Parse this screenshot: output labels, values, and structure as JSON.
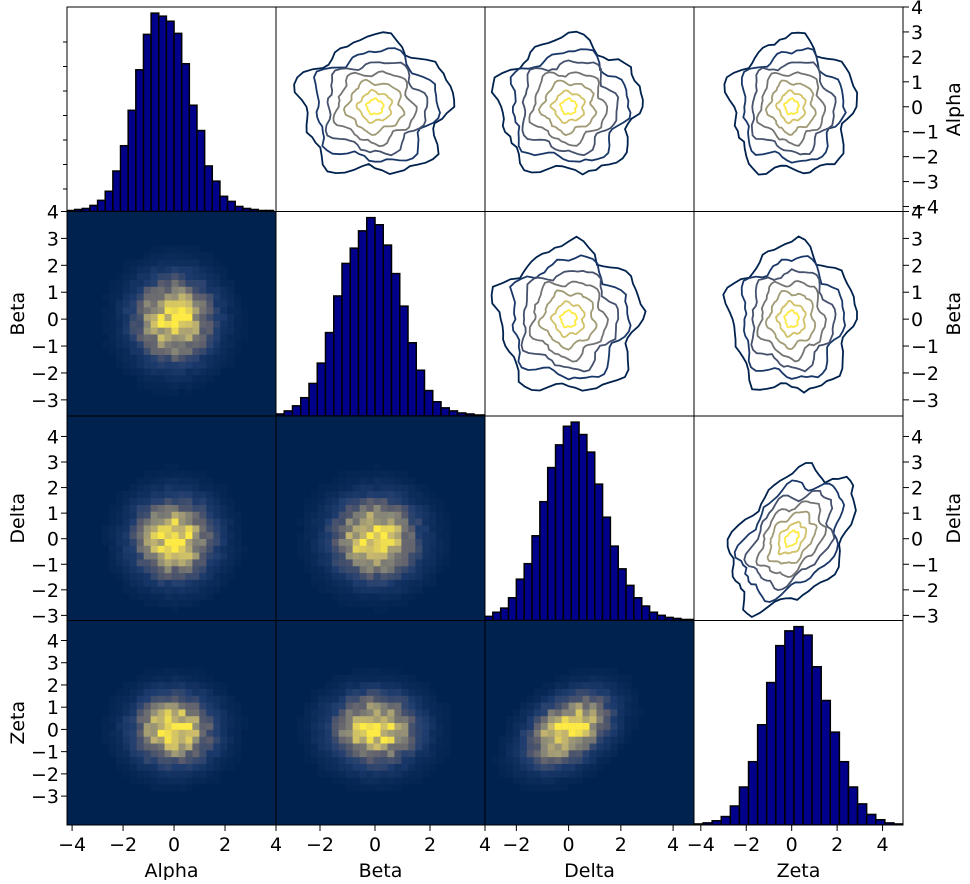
{
  "chart_data": {
    "type": "pair-grid",
    "variables": [
      "Alpha",
      "Beta",
      "Delta",
      "Zeta"
    ],
    "axis_limits": {
      "Alpha": [
        -4.2,
        4.0
      ],
      "Beta": [
        -3.6,
        4.0
      ],
      "Delta": [
        -3.2,
        4.8
      ],
      "Zeta": [
        -4.3,
        4.9
      ]
    },
    "ticks": {
      "Alpha": [
        "−4",
        "−2",
        "0",
        "2",
        "4"
      ],
      "Beta": [
        "−2",
        "0",
        "2",
        "4"
      ],
      "Delta": [
        "−2",
        "0",
        "2",
        "4"
      ],
      "Zeta": [
        "−4",
        "−2",
        "0",
        "2",
        "4"
      ]
    },
    "row_ticks": {
      "Alpha": [
        "−4",
        "−3",
        "−2",
        "−1",
        "0",
        "1",
        "2",
        "3",
        "4"
      ],
      "Beta": [
        "−3",
        "−2",
        "−1",
        "0",
        "1",
        "2",
        "3",
        "4"
      ],
      "Delta": [
        "−3",
        "−2",
        "−1",
        "0",
        "1",
        "2",
        "3",
        "4"
      ],
      "Zeta": [
        "−3",
        "−2",
        "−1",
        "0",
        "1",
        "2",
        "3",
        "4"
      ]
    },
    "diagonal": {
      "type": "histogram",
      "color": "#00008b",
      "edge": "#000000",
      "Alpha": {
        "bins": [
          -4.2,
          -3.9,
          -3.6,
          -3.3,
          -3.0,
          -2.7,
          -2.4,
          -2.1,
          -1.8,
          -1.5,
          -1.2,
          -0.9,
          -0.6,
          -0.3,
          0.0,
          0.3,
          0.6,
          0.9,
          1.2,
          1.5,
          1.8,
          2.1,
          2.4,
          2.7,
          3.0,
          3.3,
          3.6,
          3.9
        ],
        "counts": [
          1,
          2,
          3,
          6,
          11,
          20,
          40,
          65,
          100,
          140,
          175,
          196,
          193,
          188,
          176,
          146,
          105,
          80,
          45,
          30,
          15,
          10,
          5,
          3,
          2,
          1,
          1
        ]
      },
      "Beta": {
        "bins": [
          -3.6,
          -3.3,
          -3.0,
          -2.7,
          -2.4,
          -2.1,
          -1.8,
          -1.5,
          -1.2,
          -0.9,
          -0.6,
          -0.3,
          0.0,
          0.3,
          0.6,
          0.9,
          1.2,
          1.5,
          1.8,
          2.1,
          2.4,
          2.7,
          3.0,
          3.3,
          3.6,
          4.0
        ],
        "counts": [
          2,
          5,
          10,
          18,
          32,
          52,
          82,
          118,
          150,
          165,
          182,
          195,
          188,
          168,
          140,
          108,
          72,
          45,
          25,
          14,
          8,
          5,
          3,
          2,
          1
        ]
      },
      "Delta": {
        "bins": [
          -3.2,
          -2.9,
          -2.6,
          -2.3,
          -2.0,
          -1.7,
          -1.4,
          -1.1,
          -0.8,
          -0.5,
          -0.2,
          0.1,
          0.4,
          0.7,
          1.0,
          1.3,
          1.6,
          1.9,
          2.2,
          2.5,
          2.8,
          3.1,
          3.4,
          3.7,
          4.0,
          4.3,
          4.8
        ],
        "counts": [
          4,
          8,
          12,
          22,
          40,
          55,
          82,
          115,
          148,
          170,
          188,
          192,
          180,
          163,
          132,
          100,
          72,
          50,
          34,
          22,
          14,
          8,
          5,
          3,
          2,
          1
        ]
      },
      "Zeta": {
        "bins": [
          -4.3,
          -3.9,
          -3.5,
          -3.1,
          -2.7,
          -2.3,
          -1.9,
          -1.5,
          -1.1,
          -0.7,
          -0.3,
          0.1,
          0.5,
          0.9,
          1.3,
          1.7,
          2.1,
          2.5,
          2.9,
          3.3,
          3.7,
          4.1,
          4.5,
          4.9
        ],
        "counts": [
          1,
          2,
          4,
          8,
          18,
          36,
          60,
          95,
          135,
          170,
          184,
          188,
          180,
          150,
          118,
          88,
          60,
          36,
          20,
          10,
          5,
          2,
          1
        ]
      }
    },
    "lower": {
      "type": "2d-histogram",
      "colormap": "cividis",
      "bins": 30,
      "background": "#00224e"
    },
    "upper": {
      "type": "contour",
      "colormap": "cividis",
      "levels": 6
    },
    "correlations": {
      "Alpha-Beta": 0.0,
      "Alpha-Delta": 0.0,
      "Alpha-Zeta": 0.0,
      "Beta-Delta": 0.0,
      "Beta-Zeta": 0.0,
      "Delta-Zeta": 0.4
    }
  }
}
